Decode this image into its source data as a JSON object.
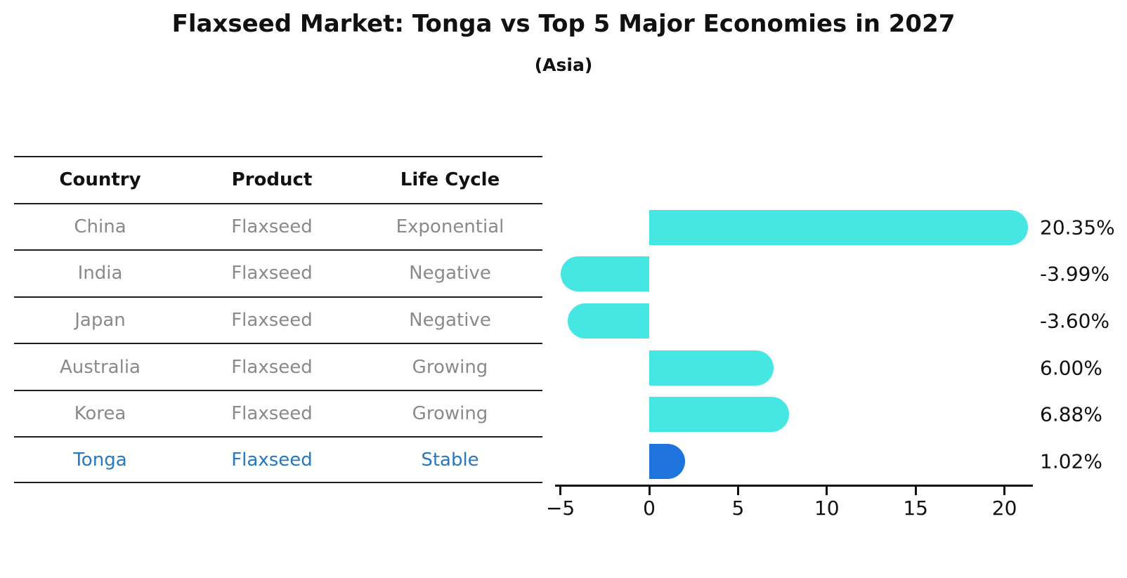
{
  "title": "Flaxseed Market: Tonga vs Top 5 Major Economies in 2027",
  "subtitle": "(Asia)",
  "chart_data": {
    "type": "bar",
    "orientation": "horizontal",
    "title": "Flaxseed Market: Tonga vs Top 5 Major Economies in 2027",
    "subtitle": "(Asia)",
    "table_headers": [
      "Country",
      "Product",
      "Life Cycle"
    ],
    "rows": [
      {
        "country": "China",
        "product": "Flaxseed",
        "life_cycle": "Exponential",
        "value": 20.35,
        "value_label": "20.35%",
        "highlight": false
      },
      {
        "country": "India",
        "product": "Flaxseed",
        "life_cycle": "Negative",
        "value": -3.99,
        "value_label": "-3.99%",
        "highlight": false
      },
      {
        "country": "Japan",
        "product": "Flaxseed",
        "life_cycle": "Negative",
        "value": -3.6,
        "value_label": "-3.60%",
        "highlight": false
      },
      {
        "country": "Australia",
        "product": "Flaxseed",
        "life_cycle": "Growing",
        "value": 6.0,
        "value_label": "6.00%",
        "highlight": false
      },
      {
        "country": "Korea",
        "product": "Flaxseed",
        "life_cycle": "Growing",
        "value": 6.88,
        "value_label": "6.88%",
        "highlight": false
      },
      {
        "country": "Tonga",
        "product": "Flaxseed",
        "life_cycle": "Stable",
        "value": 1.02,
        "value_label": "1.02%",
        "highlight": true
      }
    ],
    "x_axis": {
      "ticks": [
        {
          "value": -5,
          "label": "−5"
        },
        {
          "value": 0,
          "label": "0"
        },
        {
          "value": 5,
          "label": "5"
        },
        {
          "value": 10,
          "label": "10"
        },
        {
          "value": 15,
          "label": "15"
        },
        {
          "value": 20,
          "label": "20"
        }
      ],
      "range": [
        -5.3,
        21.6
      ],
      "grid": false
    },
    "legend": null,
    "colors": {
      "bar": "#46E7E2",
      "highlight_bar": "#1E73DC",
      "highlight_text": "#2878BE",
      "row_text": "#8A8A8A",
      "header_text": "#111111",
      "axis": "#111111"
    }
  }
}
